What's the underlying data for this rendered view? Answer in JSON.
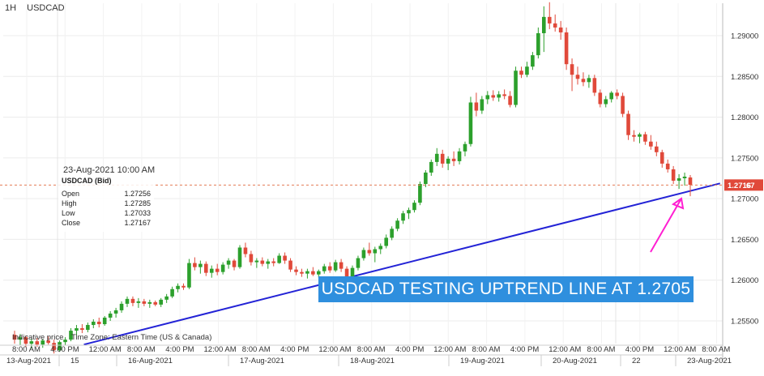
{
  "header": {
    "timeframe": "1H",
    "symbol": "USDCAD"
  },
  "tooltip": {
    "time": "23-Aug-2021 10:00 AM",
    "title": "USDCAD (Bid)",
    "rows": [
      {
        "label": "Open",
        "value": "1.27256"
      },
      {
        "label": "High",
        "value": "1.27285"
      },
      {
        "label": "Low",
        "value": "1.27033"
      },
      {
        "label": "Close",
        "value": "1.27167"
      }
    ]
  },
  "footer": {
    "indicative": "Indicative price",
    "timezone": "Time Zone: Eastern Time (US & Canada)"
  },
  "annotation": {
    "callout": "USDCAD TESTING UPTREND LINE AT 1.2705"
  },
  "price_tag": {
    "label": "1.2716",
    "display": "1.27167"
  },
  "colors": {
    "up": "#2ca02c",
    "down": "#e0493a",
    "trendline": "#2323d6",
    "arrow": "#ff1fd2",
    "callout_bg": "#2f8fde",
    "price_line": "#e27b56"
  },
  "chart_data": {
    "type": "candlestick",
    "title": "USDCAD",
    "timeframe": "1H",
    "ylim": [
      1.2515,
      1.2945
    ],
    "y_ticks": [
      1.255,
      1.26,
      1.265,
      1.27,
      1.275,
      1.28,
      1.285,
      1.29
    ],
    "y_tick_labels": [
      "1.25500",
      "1.26000",
      "1.26500",
      "1.27000",
      "1.27500",
      "1.28000",
      "1.28500",
      "1.29000"
    ],
    "x_time_labels": [
      "8:00 AM",
      "4:00 PM",
      "12:00 AM",
      "8:00 AM",
      "4:00 PM",
      "12:00 AM",
      "8:00 AM",
      "4:00 PM",
      "12:00 AM",
      "8:00 AM",
      "4:00 PM",
      "12:00 AM",
      "8:00 AM",
      "4:00 PM",
      "12:00 AM",
      "8:00 AM",
      "4:00 PM",
      "12:00 AM",
      "8:00 AM"
    ],
    "x_date_labels": [
      "13-Aug-2021",
      "15",
      "16-Aug-2021",
      "17-Aug-2021",
      "18-Aug-2021",
      "19-Aug-2021",
      "20-Aug-2021",
      "22",
      "23-Aug-2021"
    ],
    "grid": true,
    "last_price": 1.27167,
    "candles": [
      {
        "o": 1.2533,
        "h": 1.2538,
        "l": 1.2522,
        "c": 1.2527
      },
      {
        "o": 1.2527,
        "h": 1.2534,
        "l": 1.252,
        "c": 1.253
      },
      {
        "o": 1.253,
        "h": 1.2532,
        "l": 1.2518,
        "c": 1.2522
      },
      {
        "o": 1.2522,
        "h": 1.2528,
        "l": 1.2516,
        "c": 1.2525
      },
      {
        "o": 1.2525,
        "h": 1.2529,
        "l": 1.2518,
        "c": 1.2521
      },
      {
        "o": 1.2521,
        "h": 1.2528,
        "l": 1.2517,
        "c": 1.2526
      },
      {
        "o": 1.2526,
        "h": 1.2531,
        "l": 1.2521,
        "c": 1.2523
      },
      {
        "o": 1.2523,
        "h": 1.2527,
        "l": 1.251,
        "c": 1.2514
      },
      {
        "o": 1.2514,
        "h": 1.2526,
        "l": 1.2512,
        "c": 1.2524
      },
      {
        "o": 1.2524,
        "h": 1.253,
        "l": 1.252,
        "c": 1.2527
      },
      {
        "o": 1.2527,
        "h": 1.2541,
        "l": 1.2525,
        "c": 1.2538
      },
      {
        "o": 1.2538,
        "h": 1.2545,
        "l": 1.2532,
        "c": 1.2541
      },
      {
        "o": 1.2541,
        "h": 1.2546,
        "l": 1.2535,
        "c": 1.2539
      },
      {
        "o": 1.2539,
        "h": 1.2548,
        "l": 1.2536,
        "c": 1.2545
      },
      {
        "o": 1.2545,
        "h": 1.2552,
        "l": 1.2541,
        "c": 1.2549
      },
      {
        "o": 1.2549,
        "h": 1.2554,
        "l": 1.2542,
        "c": 1.2546
      },
      {
        "o": 1.2546,
        "h": 1.2556,
        "l": 1.2544,
        "c": 1.2554
      },
      {
        "o": 1.2554,
        "h": 1.2562,
        "l": 1.255,
        "c": 1.2559
      },
      {
        "o": 1.2559,
        "h": 1.2566,
        "l": 1.2554,
        "c": 1.2563
      },
      {
        "o": 1.2563,
        "h": 1.2574,
        "l": 1.256,
        "c": 1.2571
      },
      {
        "o": 1.2571,
        "h": 1.258,
        "l": 1.2567,
        "c": 1.2577
      },
      {
        "o": 1.2577,
        "h": 1.258,
        "l": 1.2568,
        "c": 1.2572
      },
      {
        "o": 1.2572,
        "h": 1.2578,
        "l": 1.2566,
        "c": 1.2574
      },
      {
        "o": 1.2574,
        "h": 1.2577,
        "l": 1.2568,
        "c": 1.2571
      },
      {
        "o": 1.2571,
        "h": 1.2576,
        "l": 1.2566,
        "c": 1.2573
      },
      {
        "o": 1.2573,
        "h": 1.2575,
        "l": 1.2568,
        "c": 1.257
      },
      {
        "o": 1.257,
        "h": 1.2578,
        "l": 1.2567,
        "c": 1.2576
      },
      {
        "o": 1.2576,
        "h": 1.2583,
        "l": 1.2572,
        "c": 1.258
      },
      {
        "o": 1.258,
        "h": 1.2592,
        "l": 1.2578,
        "c": 1.2589
      },
      {
        "o": 1.2589,
        "h": 1.2596,
        "l": 1.2585,
        "c": 1.2593
      },
      {
        "o": 1.2593,
        "h": 1.2596,
        "l": 1.2588,
        "c": 1.2591
      },
      {
        "o": 1.2591,
        "h": 1.2626,
        "l": 1.2589,
        "c": 1.2621
      },
      {
        "o": 1.2621,
        "h": 1.2628,
        "l": 1.2612,
        "c": 1.2616
      },
      {
        "o": 1.2616,
        "h": 1.2624,
        "l": 1.2608,
        "c": 1.262
      },
      {
        "o": 1.262,
        "h": 1.2623,
        "l": 1.2605,
        "c": 1.2609
      },
      {
        "o": 1.2609,
        "h": 1.2618,
        "l": 1.2603,
        "c": 1.2614
      },
      {
        "o": 1.2614,
        "h": 1.262,
        "l": 1.2606,
        "c": 1.261
      },
      {
        "o": 1.261,
        "h": 1.2622,
        "l": 1.2607,
        "c": 1.2619
      },
      {
        "o": 1.2619,
        "h": 1.2627,
        "l": 1.2614,
        "c": 1.2624
      },
      {
        "o": 1.2624,
        "h": 1.2626,
        "l": 1.2612,
        "c": 1.2616
      },
      {
        "o": 1.2616,
        "h": 1.2643,
        "l": 1.2614,
        "c": 1.264
      },
      {
        "o": 1.264,
        "h": 1.2646,
        "l": 1.2628,
        "c": 1.2632
      },
      {
        "o": 1.2632,
        "h": 1.2636,
        "l": 1.2618,
        "c": 1.2622
      },
      {
        "o": 1.2622,
        "h": 1.2627,
        "l": 1.2615,
        "c": 1.2624
      },
      {
        "o": 1.2624,
        "h": 1.2628,
        "l": 1.2617,
        "c": 1.262
      },
      {
        "o": 1.262,
        "h": 1.2626,
        "l": 1.2614,
        "c": 1.2623
      },
      {
        "o": 1.2623,
        "h": 1.2627,
        "l": 1.2617,
        "c": 1.2621
      },
      {
        "o": 1.2621,
        "h": 1.2633,
        "l": 1.262,
        "c": 1.263
      },
      {
        "o": 1.263,
        "h": 1.2634,
        "l": 1.262,
        "c": 1.2624
      },
      {
        "o": 1.2624,
        "h": 1.2627,
        "l": 1.261,
        "c": 1.2613
      },
      {
        "o": 1.2613,
        "h": 1.2617,
        "l": 1.2606,
        "c": 1.261
      },
      {
        "o": 1.261,
        "h": 1.2614,
        "l": 1.2604,
        "c": 1.2608
      },
      {
        "o": 1.2608,
        "h": 1.2614,
        "l": 1.2602,
        "c": 1.2611
      },
      {
        "o": 1.2611,
        "h": 1.2616,
        "l": 1.2605,
        "c": 1.2607
      },
      {
        "o": 1.2607,
        "h": 1.2613,
        "l": 1.2603,
        "c": 1.2611
      },
      {
        "o": 1.2611,
        "h": 1.262,
        "l": 1.2608,
        "c": 1.2617
      },
      {
        "o": 1.2617,
        "h": 1.2622,
        "l": 1.2609,
        "c": 1.2612
      },
      {
        "o": 1.2612,
        "h": 1.2625,
        "l": 1.261,
        "c": 1.2622
      },
      {
        "o": 1.2622,
        "h": 1.2626,
        "l": 1.261,
        "c": 1.2614
      },
      {
        "o": 1.2614,
        "h": 1.2617,
        "l": 1.26,
        "c": 1.2603
      },
      {
        "o": 1.2603,
        "h": 1.2618,
        "l": 1.26,
        "c": 1.2615
      },
      {
        "o": 1.2615,
        "h": 1.263,
        "l": 1.2612,
        "c": 1.2627
      },
      {
        "o": 1.2627,
        "h": 1.264,
        "l": 1.2624,
        "c": 1.2637
      },
      {
        "o": 1.2637,
        "h": 1.2646,
        "l": 1.263,
        "c": 1.2633
      },
      {
        "o": 1.2633,
        "h": 1.2641,
        "l": 1.2622,
        "c": 1.2638
      },
      {
        "o": 1.2638,
        "h": 1.2645,
        "l": 1.2632,
        "c": 1.2642
      },
      {
        "o": 1.2642,
        "h": 1.2656,
        "l": 1.2639,
        "c": 1.2652
      },
      {
        "o": 1.2652,
        "h": 1.2666,
        "l": 1.2649,
        "c": 1.2663
      },
      {
        "o": 1.2663,
        "h": 1.2676,
        "l": 1.266,
        "c": 1.2673
      },
      {
        "o": 1.2673,
        "h": 1.2685,
        "l": 1.2669,
        "c": 1.2682
      },
      {
        "o": 1.2682,
        "h": 1.2689,
        "l": 1.2675,
        "c": 1.2686
      },
      {
        "o": 1.2686,
        "h": 1.2698,
        "l": 1.2683,
        "c": 1.2695
      },
      {
        "o": 1.2695,
        "h": 1.2721,
        "l": 1.2692,
        "c": 1.2718
      },
      {
        "o": 1.2718,
        "h": 1.2735,
        "l": 1.2714,
        "c": 1.2732
      },
      {
        "o": 1.2732,
        "h": 1.2748,
        "l": 1.2728,
        "c": 1.2745
      },
      {
        "o": 1.2745,
        "h": 1.2762,
        "l": 1.274,
        "c": 1.2755
      },
      {
        "o": 1.2755,
        "h": 1.276,
        "l": 1.2738,
        "c": 1.2743
      },
      {
        "o": 1.2743,
        "h": 1.2752,
        "l": 1.2735,
        "c": 1.2749
      },
      {
        "o": 1.2749,
        "h": 1.2758,
        "l": 1.274,
        "c": 1.2746
      },
      {
        "o": 1.2746,
        "h": 1.2762,
        "l": 1.2742,
        "c": 1.2758
      },
      {
        "o": 1.2758,
        "h": 1.277,
        "l": 1.2752,
        "c": 1.2767
      },
      {
        "o": 1.2767,
        "h": 1.2825,
        "l": 1.2764,
        "c": 1.2818
      },
      {
        "o": 1.2818,
        "h": 1.283,
        "l": 1.2801,
        "c": 1.2808
      },
      {
        "o": 1.2808,
        "h": 1.2826,
        "l": 1.2804,
        "c": 1.2822
      },
      {
        "o": 1.2822,
        "h": 1.2832,
        "l": 1.2816,
        "c": 1.2827
      },
      {
        "o": 1.2827,
        "h": 1.2833,
        "l": 1.282,
        "c": 1.2824
      },
      {
        "o": 1.2824,
        "h": 1.2832,
        "l": 1.2819,
        "c": 1.2828
      },
      {
        "o": 1.2828,
        "h": 1.2834,
        "l": 1.2822,
        "c": 1.2826
      },
      {
        "o": 1.2826,
        "h": 1.2832,
        "l": 1.2812,
        "c": 1.2815
      },
      {
        "o": 1.2815,
        "h": 1.2862,
        "l": 1.2812,
        "c": 1.2857
      },
      {
        "o": 1.2857,
        "h": 1.2862,
        "l": 1.2848,
        "c": 1.2852
      },
      {
        "o": 1.2852,
        "h": 1.2868,
        "l": 1.2849,
        "c": 1.2862
      },
      {
        "o": 1.2862,
        "h": 1.288,
        "l": 1.2858,
        "c": 1.2876
      },
      {
        "o": 1.2876,
        "h": 1.291,
        "l": 1.2872,
        "c": 1.2903
      },
      {
        "o": 1.2903,
        "h": 1.2936,
        "l": 1.288,
        "c": 1.2923
      },
      {
        "o": 1.2923,
        "h": 1.2941,
        "l": 1.2908,
        "c": 1.2915
      },
      {
        "o": 1.2915,
        "h": 1.2926,
        "l": 1.2905,
        "c": 1.291
      },
      {
        "o": 1.291,
        "h": 1.2918,
        "l": 1.2895,
        "c": 1.2904
      },
      {
        "o": 1.2904,
        "h": 1.291,
        "l": 1.2858,
        "c": 1.2865
      },
      {
        "o": 1.2865,
        "h": 1.2872,
        "l": 1.2832,
        "c": 1.2852
      },
      {
        "o": 1.2852,
        "h": 1.2862,
        "l": 1.284,
        "c": 1.2847
      },
      {
        "o": 1.2847,
        "h": 1.2855,
        "l": 1.2838,
        "c": 1.2843
      },
      {
        "o": 1.2843,
        "h": 1.2852,
        "l": 1.2836,
        "c": 1.2848
      },
      {
        "o": 1.2848,
        "h": 1.2852,
        "l": 1.2826,
        "c": 1.283
      },
      {
        "o": 1.283,
        "h": 1.2834,
        "l": 1.2812,
        "c": 1.2816
      },
      {
        "o": 1.2816,
        "h": 1.2826,
        "l": 1.2812,
        "c": 1.2822
      },
      {
        "o": 1.2822,
        "h": 1.2832,
        "l": 1.2818,
        "c": 1.283
      },
      {
        "o": 1.283,
        "h": 1.2834,
        "l": 1.2822,
        "c": 1.2826
      },
      {
        "o": 1.2826,
        "h": 1.283,
        "l": 1.28,
        "c": 1.2804
      },
      {
        "o": 1.2804,
        "h": 1.2808,
        "l": 1.2772,
        "c": 1.2778
      },
      {
        "o": 1.2778,
        "h": 1.2784,
        "l": 1.277,
        "c": 1.2776
      },
      {
        "o": 1.2776,
        "h": 1.2781,
        "l": 1.2768,
        "c": 1.2779
      },
      {
        "o": 1.2779,
        "h": 1.2782,
        "l": 1.2766,
        "c": 1.277
      },
      {
        "o": 1.277,
        "h": 1.2778,
        "l": 1.276,
        "c": 1.2764
      },
      {
        "o": 1.2764,
        "h": 1.277,
        "l": 1.2752,
        "c": 1.2757
      },
      {
        "o": 1.2757,
        "h": 1.276,
        "l": 1.2738,
        "c": 1.2743
      },
      {
        "o": 1.2743,
        "h": 1.2748,
        "l": 1.2732,
        "c": 1.2736
      },
      {
        "o": 1.2736,
        "h": 1.274,
        "l": 1.2718,
        "c": 1.2722
      },
      {
        "o": 1.2722,
        "h": 1.273,
        "l": 1.2712,
        "c": 1.2725
      },
      {
        "o": 1.2725,
        "h": 1.2732,
        "l": 1.2716,
        "c": 1.2727
      },
      {
        "o": 1.2726,
        "h": 1.2729,
        "l": 1.2703,
        "c": 1.2717
      }
    ],
    "trendline": {
      "start": {
        "index": 9,
        "price": 1.2521
      },
      "end": {
        "index": 124,
        "price": 1.2717
      }
    },
    "annotations": [
      "USDCAD TESTING UPTREND LINE AT 1.2705"
    ]
  }
}
